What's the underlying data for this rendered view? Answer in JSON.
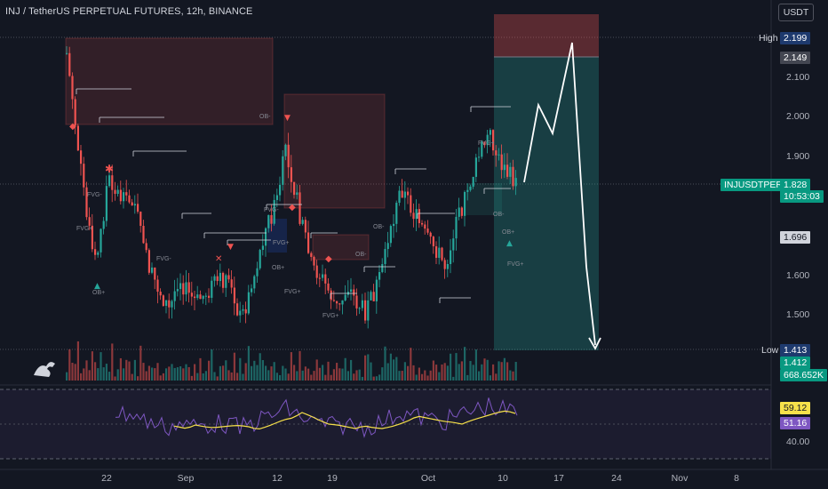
{
  "header": {
    "title": "INJ / TetherUS PERPETUAL FUTURES, 12h, BINANCE",
    "currency": "USDT"
  },
  "chart_data": {
    "type": "candlestick",
    "symbol": "INJUSDTPERP",
    "timeframe": "12h",
    "price_axis": {
      "ticks": [
        "2.100",
        "2.000",
        "1.900",
        "1.600",
        "1.500"
      ],
      "range": [
        1.38,
        2.24
      ]
    },
    "time_axis": {
      "ticks": [
        "22",
        "Sep",
        "12",
        "19",
        "Oct",
        "10",
        "17",
        "24",
        "Nov",
        "8"
      ]
    },
    "markers": {
      "high": {
        "label": "High",
        "value": "2.199"
      },
      "target": {
        "value": "2.149"
      },
      "last": {
        "label": "INJUSDTPERP",
        "value": "1.828",
        "countdown": "10:53:03"
      },
      "level": {
        "value": "1.696"
      },
      "low": {
        "label": "Low",
        "value": "1.413"
      },
      "low2": {
        "value": "1.412"
      },
      "volume": {
        "value": "668.652K"
      }
    },
    "rsi": {
      "ticks": [
        "40.00"
      ],
      "value": "59.12",
      "ma_value": "51.16"
    },
    "annotations": [
      "FVG-",
      "FVG+",
      "OB-",
      "OB+",
      "FVG-",
      "FVG+",
      "FVG-",
      "OB-",
      "OB+",
      "FVG+",
      "OB-",
      "FVG+",
      "FVG+",
      "OB-",
      "OB+",
      "FVG+"
    ],
    "colors": {
      "up": "#26a69a",
      "down": "#ef5350",
      "background": "#131722",
      "rsi_line": "#7e57c2",
      "rsi_ma": "#f7e14a",
      "projection": "#ffffff"
    }
  }
}
